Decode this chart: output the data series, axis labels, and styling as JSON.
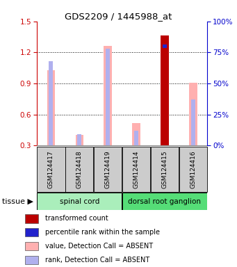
{
  "title": "GDS2209 / 1445988_at",
  "samples": [
    "GSM124417",
    "GSM124418",
    "GSM124419",
    "GSM124414",
    "GSM124415",
    "GSM124416"
  ],
  "transformed_count": [
    null,
    null,
    null,
    null,
    1.365,
    null
  ],
  "percentile_rank_val": [
    null,
    null,
    null,
    null,
    80.0,
    null
  ],
  "value_absent": [
    1.03,
    0.405,
    1.265,
    0.52,
    null,
    0.905
  ],
  "rank_absent_val": [
    68.0,
    9.0,
    78.0,
    12.0,
    null,
    37.0
  ],
  "ylim_left": [
    0.3,
    1.5
  ],
  "ylim_right": [
    0,
    100
  ],
  "yticks_left": [
    0.3,
    0.6,
    0.9,
    1.2,
    1.5
  ],
  "yticks_right": [
    0,
    25,
    50,
    75,
    100
  ],
  "ytick_labels_right": [
    "0%",
    "25%",
    "50%",
    "75%",
    "100%"
  ],
  "color_transformed": "#bb0000",
  "color_percentile": "#2222cc",
  "color_value_absent": "#ffb0b0",
  "color_rank_absent": "#b0b0ee",
  "color_tissue_spinal": "#aaeebb",
  "color_tissue_dorsal": "#55dd77",
  "color_axis_left": "#cc0000",
  "color_axis_right": "#0000cc",
  "legend_items": [
    {
      "label": "transformed count",
      "color": "#bb0000"
    },
    {
      "label": "percentile rank within the sample",
      "color": "#2222cc"
    },
    {
      "label": "value, Detection Call = ABSENT",
      "color": "#ffb0b0"
    },
    {
      "label": "rank, Detection Call = ABSENT",
      "color": "#b0b0ee"
    }
  ]
}
